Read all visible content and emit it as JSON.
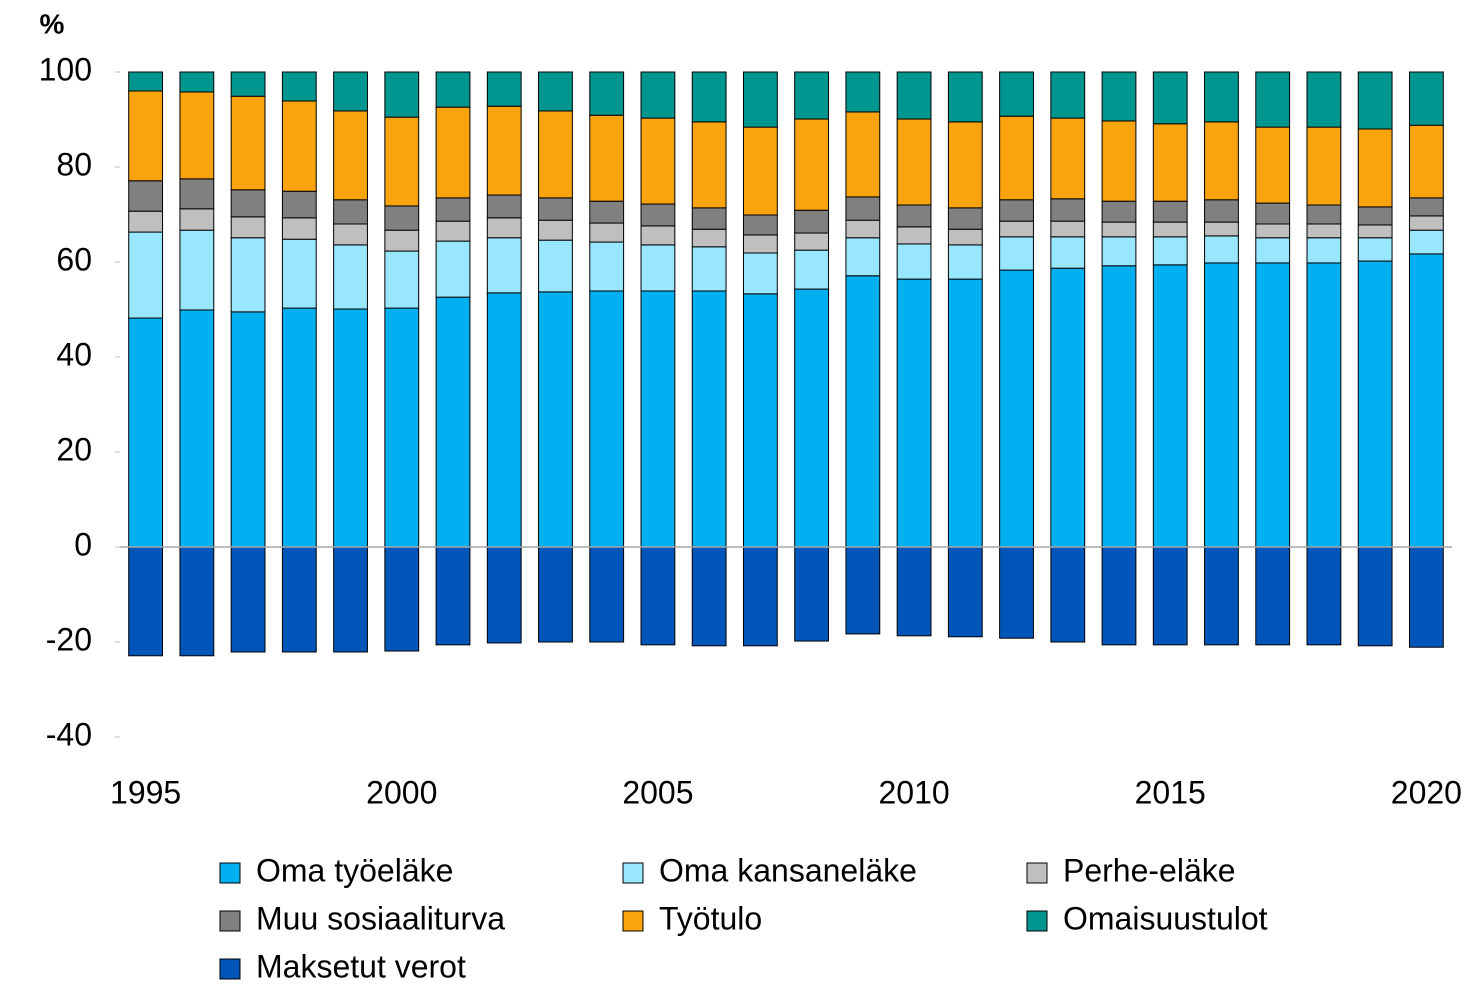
{
  "chart_data": {
    "type": "stacked_bar",
    "ylabel": "%",
    "categories": [
      1995,
      null,
      null,
      null,
      null,
      2000,
      null,
      null,
      null,
      null,
      2005,
      null,
      null,
      null,
      null,
      2010,
      null,
      null,
      null,
      null,
      2015,
      null,
      null,
      null,
      null,
      2020
    ],
    "ylim": [
      -40,
      100
    ],
    "yticks": [
      -40,
      -20,
      0,
      20,
      40,
      60,
      80,
      100
    ],
    "legend": "bottom",
    "series": [
      {
        "name": "Oma työeläke",
        "color": "#00b0f0",
        "values": [
          48.2,
          49.9,
          49.5,
          50.3,
          50.1,
          50.3,
          52.6,
          53.5,
          53.7,
          53.9,
          53.9,
          53.9,
          53.3,
          54.3,
          57.1,
          56.4,
          56.4,
          58.3,
          58.7,
          59.2,
          59.4,
          59.8,
          59.8,
          59.8,
          60.2,
          61.7
        ]
      },
      {
        "name": "Oma kansaneläke",
        "color": "#99e6ff",
        "values": [
          18.1,
          16.8,
          15.6,
          14.5,
          13.5,
          12.0,
          11.8,
          11.6,
          10.9,
          10.3,
          9.7,
          9.3,
          8.6,
          8.2,
          8.0,
          7.4,
          7.2,
          7.0,
          6.6,
          6.1,
          5.9,
          5.7,
          5.3,
          5.3,
          4.9,
          5.0
        ]
      },
      {
        "name": "Perhe-eläke",
        "color": "#bfbfbf",
        "values": [
          4.4,
          4.5,
          4.4,
          4.5,
          4.4,
          4.4,
          4.2,
          4.2,
          4.2,
          4.0,
          4.0,
          3.7,
          3.8,
          3.6,
          3.7,
          3.6,
          3.3,
          3.3,
          3.3,
          3.1,
          3.1,
          2.9,
          2.9,
          2.9,
          2.7,
          3.0
        ]
      },
      {
        "name": "Muu sosiaaliturva",
        "color": "#808080",
        "values": [
          6.4,
          6.3,
          5.7,
          5.6,
          5.1,
          5.1,
          4.9,
          4.8,
          4.7,
          4.6,
          4.6,
          4.5,
          4.2,
          4.8,
          4.9,
          4.6,
          4.5,
          4.5,
          4.7,
          4.4,
          4.4,
          4.7,
          4.4,
          4.0,
          3.8,
          3.8
        ]
      },
      {
        "name": "Työtulo",
        "color": "#f9a30f",
        "values": [
          18.9,
          18.3,
          19.7,
          19.0,
          18.7,
          18.7,
          19.1,
          18.7,
          18.3,
          18.1,
          18.1,
          18.1,
          18.5,
          19.2,
          17.9,
          18.1,
          18.1,
          17.6,
          17.0,
          16.9,
          16.3,
          16.4,
          16.0,
          16.4,
          16.4,
          15.3
        ]
      },
      {
        "name": "Omaisuustulot",
        "color": "#009690",
        "values": [
          4.0,
          4.2,
          5.1,
          6.1,
          8.2,
          9.5,
          7.4,
          7.2,
          8.2,
          9.1,
          9.7,
          10.5,
          11.6,
          9.9,
          8.4,
          9.9,
          10.5,
          9.3,
          9.7,
          10.3,
          10.9,
          10.5,
          11.6,
          11.6,
          12.0,
          11.2
        ]
      },
      {
        "name": "Maksetut verot",
        "color": "#0055b8",
        "values": [
          -22.9,
          -22.9,
          -22.1,
          -22.1,
          -22.1,
          -21.9,
          -20.6,
          -20.2,
          -20.0,
          -20.0,
          -20.6,
          -20.8,
          -20.8,
          -19.8,
          -18.3,
          -18.7,
          -18.9,
          -19.2,
          -20.0,
          -20.6,
          -20.6,
          -20.6,
          -20.6,
          -20.6,
          -20.8,
          -21.1
        ]
      }
    ]
  }
}
